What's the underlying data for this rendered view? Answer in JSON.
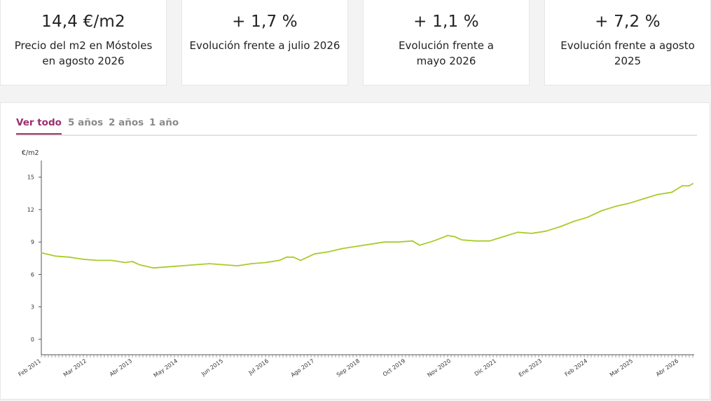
{
  "kpis": [
    {
      "value": "14,4 €/m2",
      "label": "Precio del m2 en Móstoles en agosto 2026"
    },
    {
      "value": "+ 1,7 %",
      "label": "Evolución frente a julio 2026"
    },
    {
      "value": "+ 1,1 %",
      "label": "Evolución frente a mayo 2026"
    },
    {
      "value": "+ 7,2 %",
      "label": "Evolución frente a agosto 2025"
    }
  ],
  "tabs": [
    "Ver todo",
    "5 años",
    "2 años",
    "1 año"
  ],
  "active_tab": "Ver todo",
  "chart_data": {
    "type": "line",
    "title": "",
    "ylabel": "€/m2",
    "xlabel": "",
    "ylim": [
      0,
      16
    ],
    "y_ticks": [
      0,
      3,
      6,
      9,
      12,
      15
    ],
    "x_tick_labels": [
      "Feb 2011",
      "Mar 2012",
      "Abr 2013",
      "May 2014",
      "Jun 2015",
      "Jul 2016",
      "Ago 2017",
      "Sep 2018",
      "Oct 2019",
      "Nov 2020",
      "Dic 2021",
      "Ene 2023",
      "Feb 2024",
      "Mar 2025",
      "Abr 2026"
    ],
    "line_color": "#a9cc2a",
    "grid": false,
    "series": [
      {
        "x": [
          "2011-02",
          "2011-06",
          "2011-10",
          "2012-02",
          "2012-06",
          "2012-10",
          "2013-02",
          "2013-04",
          "2013-06",
          "2013-10",
          "2014-02",
          "2014-06",
          "2014-10",
          "2015-02",
          "2015-06",
          "2015-10",
          "2016-02",
          "2016-06",
          "2016-10",
          "2016-12",
          "2017-02",
          "2017-04",
          "2017-08",
          "2017-12",
          "2018-04",
          "2018-08",
          "2018-12",
          "2019-04",
          "2019-08",
          "2019-12",
          "2020-02",
          "2020-06",
          "2020-10",
          "2020-12",
          "2021-02",
          "2021-06",
          "2021-10",
          "2022-02",
          "2022-06",
          "2022-10",
          "2023-02",
          "2023-06",
          "2023-10",
          "2024-02",
          "2024-06",
          "2024-10",
          "2025-02",
          "2025-06",
          "2025-10",
          "2026-02",
          "2026-05",
          "2026-07",
          "2026-08"
        ],
        "y": [
          8.0,
          7.7,
          7.6,
          7.4,
          7.3,
          7.3,
          7.1,
          7.2,
          6.9,
          6.6,
          6.7,
          6.8,
          6.9,
          7.0,
          6.9,
          6.8,
          7.0,
          7.1,
          7.3,
          7.6,
          7.6,
          7.3,
          7.9,
          8.1,
          8.4,
          8.6,
          8.8,
          9.0,
          9.0,
          9.1,
          8.7,
          9.1,
          9.6,
          9.5,
          9.2,
          9.1,
          9.1,
          9.5,
          9.9,
          9.8,
          10.0,
          10.4,
          10.9,
          11.3,
          11.9,
          12.3,
          12.6,
          13.0,
          13.4,
          13.6,
          14.2,
          14.2,
          14.4
        ]
      }
    ]
  }
}
